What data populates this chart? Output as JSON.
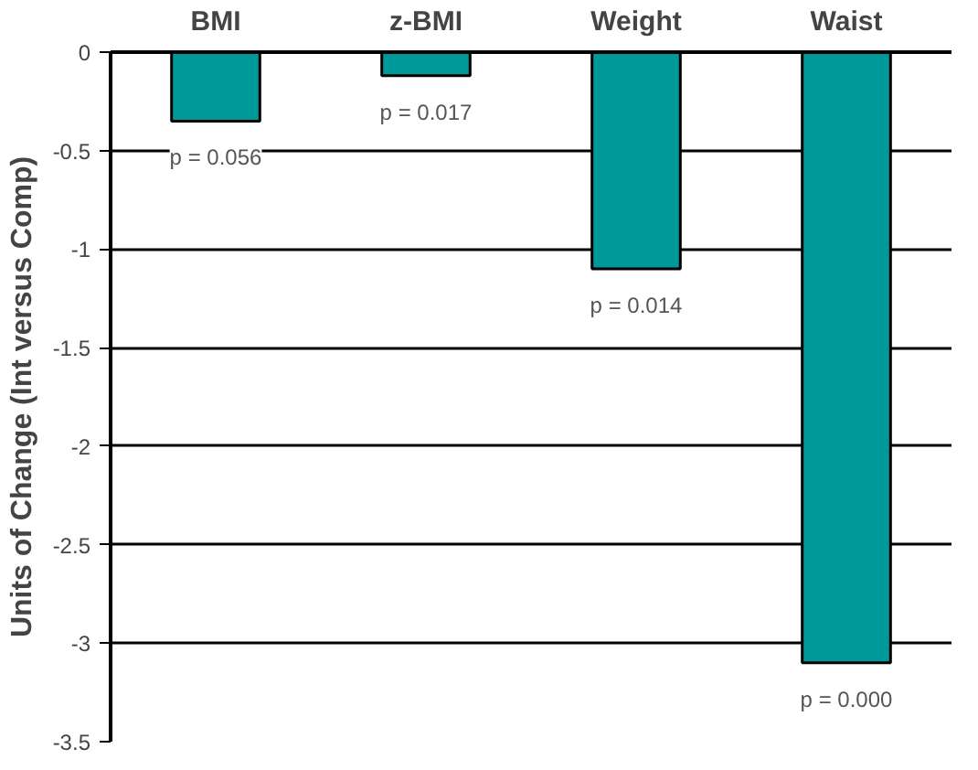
{
  "chart_data": {
    "type": "bar",
    "ylabel": "Units of Change (Int versus Comp)",
    "categories": [
      "BMI",
      "z-BMI",
      "Weight",
      "Waist"
    ],
    "values": [
      -0.35,
      -0.12,
      -1.1,
      -3.1
    ],
    "color": "#009999",
    "ylim": [
      -3.5,
      0
    ],
    "yticks": [
      0,
      -0.5,
      -1,
      -1.5,
      -2,
      -2.5,
      -3,
      -3.5
    ],
    "grid": "y",
    "annotations": [
      "p = 0.056",
      "p = 0.017",
      "p = 0.014",
      "p = 0.000"
    ]
  }
}
